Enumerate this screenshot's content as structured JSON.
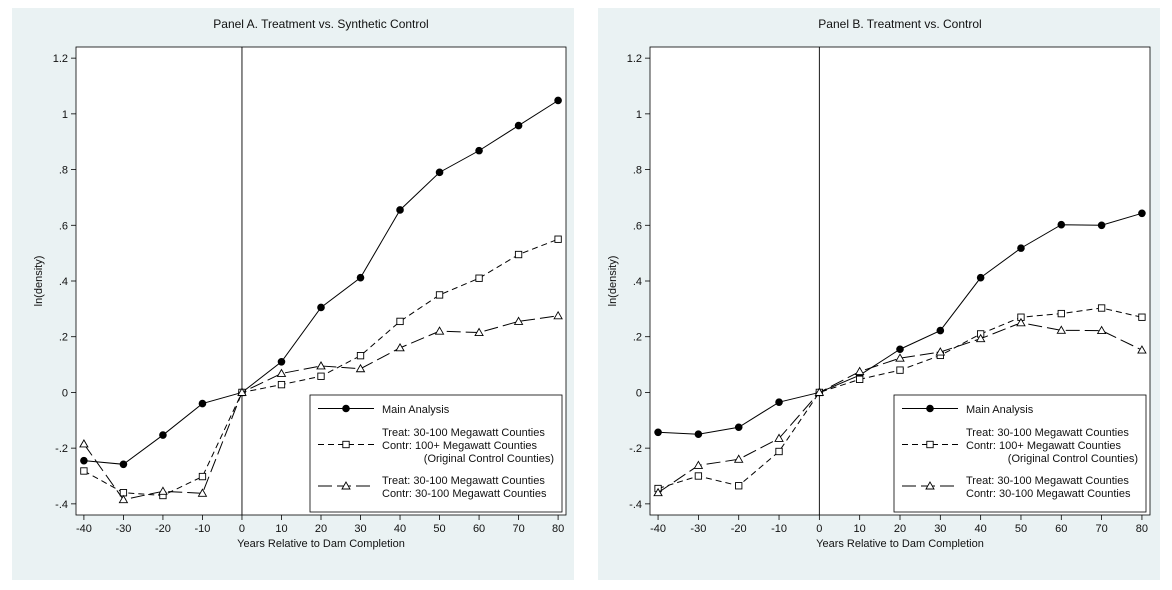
{
  "chart_data": [
    {
      "type": "line",
      "title": "Panel A. Treatment vs. Synthetic Control",
      "xlabel": "Years Relative to Dam Completion",
      "ylabel": "ln(density)",
      "x": [
        -40,
        -30,
        -20,
        -10,
        0,
        10,
        20,
        30,
        40,
        50,
        60,
        70,
        80
      ],
      "xticks": [
        -40,
        -30,
        -20,
        -10,
        0,
        10,
        20,
        30,
        40,
        50,
        60,
        70,
        80
      ],
      "xtick_labels": [
        "-40",
        "-30",
        "-20",
        "-10",
        "0",
        "10",
        "20",
        "30",
        "40",
        "50",
        "60",
        "70",
        "80"
      ],
      "yticks": [
        -0.4,
        -0.2,
        0,
        0.2,
        0.4,
        0.6,
        0.8,
        1,
        1.2
      ],
      "ytick_labels": [
        "-.4",
        "-.2",
        "0",
        ".2",
        ".4",
        ".6",
        ".8",
        "1",
        "1.2"
      ],
      "xlim": [
        -42,
        82
      ],
      "ylim": [
        -0.44,
        1.24
      ],
      "vline_x": 0,
      "grid": false,
      "legend_position": "bottom-right",
      "series": [
        {
          "name": "Main Analysis",
          "legend_lines": [
            "Main Analysis"
          ],
          "style": "solid",
          "marker": "filled-circle",
          "values": [
            -0.245,
            -0.258,
            -0.153,
            -0.04,
            0,
            0.11,
            0.305,
            0.412,
            0.655,
            0.79,
            0.868,
            0.958,
            1.048
          ]
        },
        {
          "name": "Treat: 30-100 Megawatt Counties / Contr: 100+ Megawatt Counties (Original Control Counties)",
          "legend_lines": [
            "Treat: 30-100 Megawatt Counties",
            "Contr: 100+ Megawatt Counties",
            "(Original Control Counties)"
          ],
          "style": "dashed",
          "marker": "hollow-square",
          "values": [
            -0.282,
            -0.36,
            -0.37,
            -0.302,
            0,
            0.028,
            0.058,
            0.132,
            0.255,
            0.35,
            0.41,
            0.495,
            0.55
          ]
        },
        {
          "name": "Treat: 30-100 Megawatt Counties / Contr: 30-100 Megawatt Counties",
          "legend_lines": [
            "Treat: 30-100 Megawatt Counties",
            "Contr: 30-100 Megawatt Counties"
          ],
          "style": "longdash",
          "marker": "hollow-triangle",
          "values": [
            -0.185,
            -0.385,
            -0.355,
            -0.362,
            0,
            0.068,
            0.095,
            0.085,
            0.16,
            0.22,
            0.215,
            0.255,
            0.275
          ]
        }
      ]
    },
    {
      "type": "line",
      "title": "Panel B. Treatment vs. Control",
      "xlabel": "Years Relative to Dam Completion",
      "ylabel": "ln(density)",
      "x": [
        -40,
        -30,
        -20,
        -10,
        0,
        10,
        20,
        30,
        40,
        50,
        60,
        70,
        80
      ],
      "xticks": [
        -40,
        -30,
        -20,
        -10,
        0,
        10,
        20,
        30,
        40,
        50,
        60,
        70,
        80
      ],
      "xtick_labels": [
        "-40",
        "-30",
        "-20",
        "-10",
        "0",
        "10",
        "20",
        "30",
        "40",
        "50",
        "60",
        "70",
        "80"
      ],
      "yticks": [
        -0.4,
        -0.2,
        0,
        0.2,
        0.4,
        0.6,
        0.8,
        1,
        1.2
      ],
      "ytick_labels": [
        "-.4",
        "-.2",
        "0",
        ".2",
        ".4",
        ".6",
        ".8",
        "1",
        "1.2"
      ],
      "xlim": [
        -42,
        82
      ],
      "ylim": [
        -0.44,
        1.24
      ],
      "vline_x": 0,
      "grid": false,
      "legend_position": "bottom-right",
      "series": [
        {
          "name": "Main Analysis",
          "legend_lines": [
            "Main Analysis"
          ],
          "style": "solid",
          "marker": "filled-circle",
          "values": [
            -0.143,
            -0.15,
            -0.125,
            -0.035,
            0,
            0.062,
            0.155,
            0.222,
            0.412,
            0.518,
            0.602,
            0.6,
            0.643
          ]
        },
        {
          "name": "Treat: 30-100 Megawatt Counties / Contr: 100+ Megawatt Counties (Original Control Counties)",
          "legend_lines": [
            "Treat: 30-100 Megawatt Counties",
            "Contr: 100+ Megawatt Counties",
            "(Original Control Counties)"
          ],
          "style": "dashed",
          "marker": "hollow-square",
          "values": [
            -0.345,
            -0.3,
            -0.335,
            -0.212,
            0,
            0.047,
            0.08,
            0.133,
            0.21,
            0.27,
            0.283,
            0.303,
            0.27
          ]
        },
        {
          "name": "Treat: 30-100 Megawatt Counties / Contr: 30-100 Megawatt Counties",
          "legend_lines": [
            "Treat: 30-100 Megawatt Counties",
            "Contr: 30-100 Megawatt Counties"
          ],
          "style": "longdash",
          "marker": "hollow-triangle",
          "values": [
            -0.36,
            -0.262,
            -0.24,
            -0.165,
            0,
            0.075,
            0.123,
            0.145,
            0.193,
            0.25,
            0.223,
            0.222,
            0.152
          ]
        }
      ]
    }
  ]
}
